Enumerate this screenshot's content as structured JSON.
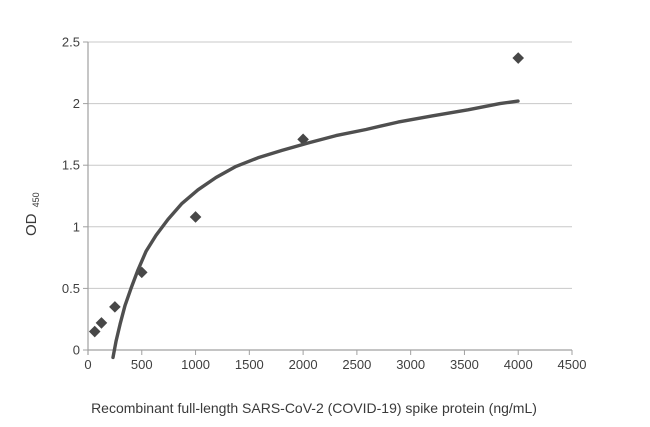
{
  "figure": {
    "background": "#ffffff"
  },
  "chart_data": {
    "type": "scatter",
    "title": "",
    "xlabel": "Recombinant full-length SARS-CoV-2 (COVID-19) spike protein (ng/mL)",
    "ylabel_main": "OD",
    "ylabel_sub": "450",
    "xlim": [
      0,
      4500
    ],
    "ylim": [
      0,
      2.5
    ],
    "x_ticks": [
      0,
      500,
      1000,
      1500,
      2000,
      2500,
      3000,
      3500,
      4000,
      4500
    ],
    "x_tick_labels": [
      "0",
      "500",
      "1000",
      "1500",
      "2000",
      "2500",
      "3000",
      "3500",
      "4000",
      "4500"
    ],
    "y_ticks": [
      0,
      0.5,
      1,
      1.5,
      2,
      2.5
    ],
    "y_tick_labels": [
      "0",
      "0.5",
      "1",
      "1.5",
      "2",
      "2.5"
    ],
    "grid": "horizontal-only",
    "legend": "none",
    "series": [
      {
        "name": "OD 450 measurements",
        "type": "scatter",
        "marker": "diamond",
        "x": [
          62.5,
          125,
          250,
          500,
          1000,
          2000,
          4000
        ],
        "y": [
          0.15,
          0.22,
          0.35,
          0.63,
          1.08,
          1.71,
          2.37
        ]
      },
      {
        "name": "fit curve",
        "type": "line",
        "points": [
          [
            232,
            -0.06
          ],
          [
            260,
            0.07
          ],
          [
            298,
            0.21
          ],
          [
            344,
            0.36
          ],
          [
            400,
            0.5
          ],
          [
            465,
            0.65
          ],
          [
            539,
            0.8
          ],
          [
            632,
            0.93
          ],
          [
            744,
            1.06
          ],
          [
            874,
            1.19
          ],
          [
            1023,
            1.3
          ],
          [
            1190,
            1.4
          ],
          [
            1376,
            1.49
          ],
          [
            1581,
            1.56
          ],
          [
            1804,
            1.62
          ],
          [
            2045,
            1.68
          ],
          [
            2306,
            1.74
          ],
          [
            2585,
            1.79
          ],
          [
            2882,
            1.85
          ],
          [
            3198,
            1.9
          ],
          [
            3533,
            1.95
          ],
          [
            3830,
            2.0
          ],
          [
            3998,
            2.02
          ]
        ]
      }
    ],
    "colors": {
      "curve": "#4f4f4f",
      "marker": "#474747",
      "gridline": "#c8c8c8",
      "axis": "#a0a0a0",
      "tick_text": "#3f3f3f",
      "title_text": "#3a3a3a"
    }
  }
}
